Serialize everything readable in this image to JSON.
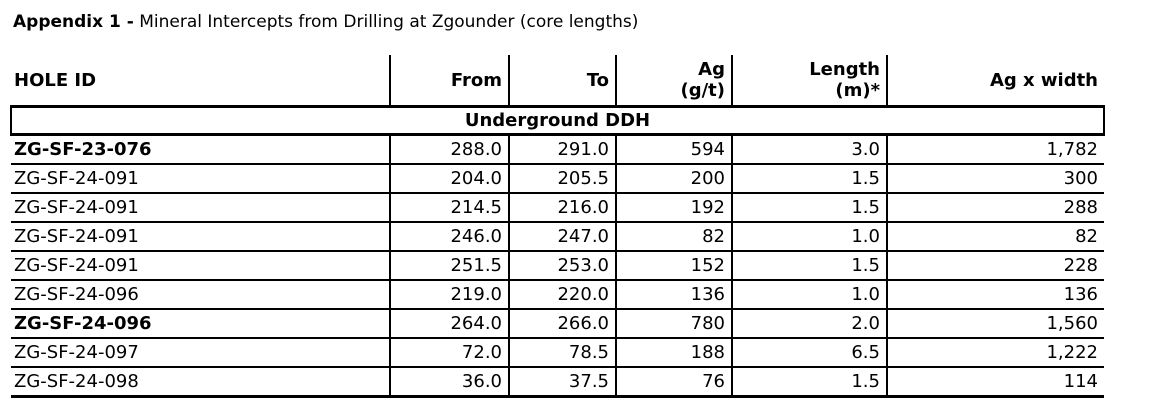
{
  "title": {
    "bold": "Appendix 1 -",
    "rest": " Mineral Intercepts from Drilling at Zgounder (core lengths)"
  },
  "table": {
    "section_label": "Underground DDH",
    "columns": [
      {
        "key": "hole_id",
        "label": "HOLE ID"
      },
      {
        "key": "from",
        "label": "From"
      },
      {
        "key": "to",
        "label": "To"
      },
      {
        "key": "ag",
        "label": "Ag",
        "label2": "(g/t)"
      },
      {
        "key": "length",
        "label": "Length",
        "label2": "(m)*"
      },
      {
        "key": "agxw",
        "label": "Ag x width"
      }
    ],
    "rows": [
      {
        "hole_id": "ZG-SF-23-076",
        "from": "288.0",
        "to": "291.0",
        "ag": "594",
        "length": "3.0",
        "agxw": "1,782",
        "bold": true
      },
      {
        "hole_id": "ZG-SF-24-091",
        "from": "204.0",
        "to": "205.5",
        "ag": "200",
        "length": "1.5",
        "agxw": "300",
        "bold": false
      },
      {
        "hole_id": "ZG-SF-24-091",
        "from": "214.5",
        "to": "216.0",
        "ag": "192",
        "length": "1.5",
        "agxw": "288",
        "bold": false
      },
      {
        "hole_id": "ZG-SF-24-091",
        "from": "246.0",
        "to": "247.0",
        "ag": "82",
        "length": "1.0",
        "agxw": "82",
        "bold": false
      },
      {
        "hole_id": "ZG-SF-24-091",
        "from": "251.5",
        "to": "253.0",
        "ag": "152",
        "length": "1.5",
        "agxw": "228",
        "bold": false
      },
      {
        "hole_id": "ZG-SF-24-096",
        "from": "219.0",
        "to": "220.0",
        "ag": "136",
        "length": "1.0",
        "agxw": "136",
        "bold": false
      },
      {
        "hole_id": "ZG-SF-24-096",
        "from": "264.0",
        "to": "266.0",
        "ag": "780",
        "length": "2.0",
        "agxw": "1,560",
        "bold": true
      },
      {
        "hole_id": "ZG-SF-24-097",
        "from": "72.0",
        "to": "78.5",
        "ag": "188",
        "length": "6.5",
        "agxw": "1,222",
        "bold": false
      },
      {
        "hole_id": "ZG-SF-24-098",
        "from": "36.0",
        "to": "37.5",
        "ag": "76",
        "length": "1.5",
        "agxw": "114",
        "bold": false
      }
    ]
  }
}
